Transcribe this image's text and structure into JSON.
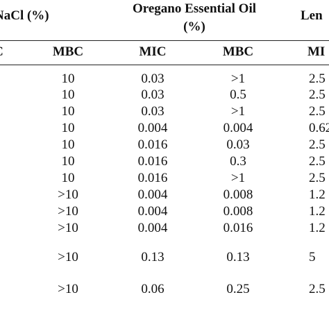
{
  "header": {
    "groups": [
      "NaCl (%)",
      "Oregano Essential Oil (%)",
      "Len"
    ],
    "columns": [
      "C",
      "MBC",
      "MIC",
      "MBC",
      "MI"
    ]
  },
  "table": {
    "rows": [
      [
        "10",
        "0.03",
        ">1",
        "2.5"
      ],
      [
        "10",
        "0.03",
        "0.5",
        "2.5"
      ],
      [
        "10",
        "0.03",
        ">1",
        "2.5"
      ],
      [
        "10",
        "0.004",
        "0.004",
        "0.62"
      ],
      [
        "10",
        "0.016",
        "0.03",
        "2.5"
      ],
      [
        "10",
        "0.016",
        "0.3",
        "2.5"
      ],
      [
        "10",
        "0.016",
        ">1",
        "2.5"
      ],
      [
        ">10",
        "0.004",
        "0.008",
        "1.2"
      ],
      [
        ">10",
        "0.004",
        "0.008",
        "1.2"
      ],
      [
        ">10",
        "0.004",
        "0.016",
        "1.2"
      ],
      [
        ">10",
        "0.13",
        "0.13",
        "5"
      ],
      [
        ">10",
        "0.06",
        "0.25",
        "2.5"
      ]
    ]
  }
}
